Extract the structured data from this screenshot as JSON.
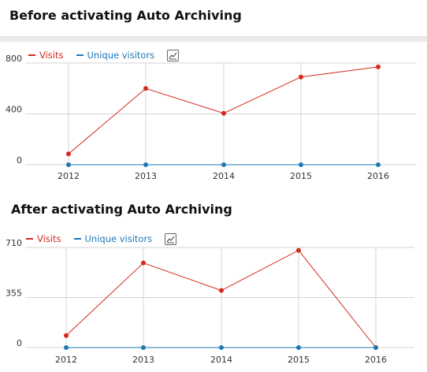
{
  "headings": {
    "before": "Before activating Auto Archiving",
    "after": "After activating Auto Archiving"
  },
  "legend": {
    "visits_label": "Visits",
    "unique_label": "Unique visitors",
    "visits_color": "#d4291f",
    "unique_color": "#1f78b4",
    "graph_icon": "evolution-graph-icon"
  },
  "chart_data": [
    {
      "type": "line",
      "x": [
        "2012",
        "2013",
        "2014",
        "2015",
        "2016"
      ],
      "series": [
        {
          "name": "Visits",
          "color": "#d4291f",
          "values": [
            85,
            600,
            405,
            690,
            770
          ]
        },
        {
          "name": "Unique visitors",
          "color": "#1f78b4",
          "values": [
            0,
            0,
            0,
            0,
            0
          ]
        }
      ],
      "yticks": [
        "800",
        "400",
        "0"
      ],
      "ylim": [
        0,
        800
      ],
      "grid": true,
      "legend": "top-left"
    },
    {
      "type": "line",
      "x": [
        "2012",
        "2013",
        "2014",
        "2015",
        "2016"
      ],
      "series": [
        {
          "name": "Visits",
          "color": "#d4291f",
          "values": [
            85,
            600,
            405,
            690,
            0
          ]
        },
        {
          "name": "Unique visitors",
          "color": "#1f78b4",
          "values": [
            0,
            0,
            0,
            0,
            0
          ]
        }
      ],
      "yticks": [
        "710",
        "355",
        "0"
      ],
      "ylim": [
        0,
        710
      ],
      "grid": true,
      "legend": "top-left"
    }
  ]
}
